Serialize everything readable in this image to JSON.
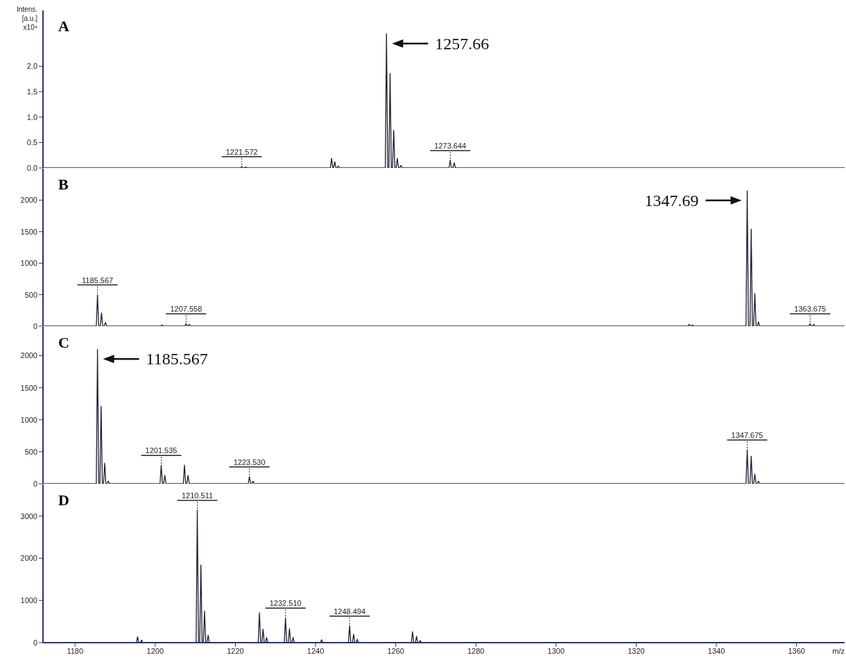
{
  "chart_data": [
    {
      "type": "line",
      "title": "A",
      "ylabel": "Intens. [a.u.] x10⁴",
      "color": "#1c1c2e",
      "xlim": [
        1172,
        1372
      ],
      "xticks": [
        1180,
        1200,
        1220,
        1240,
        1260,
        1280,
        1300,
        1320,
        1340,
        1360
      ],
      "ylim": [
        0,
        3.1
      ],
      "yticks": [
        {
          "value": 0,
          "label": "0.0"
        },
        0.5,
        {
          "value": 1,
          "label": "1.0"
        },
        1.5,
        {
          "value": 2,
          "label": "2.0"
        }
      ],
      "tick_labels": "y",
      "x": [
        1172,
        1221.3,
        1221.6,
        1221.9,
        1222.3,
        1222.6,
        1222.9,
        1243.7,
        1244.0,
        1244.3,
        1244.5,
        1244.8,
        1245.1,
        1245.4,
        1245.7,
        1246.0,
        1257.4,
        1257.7,
        1258.0,
        1258.3,
        1258.6,
        1258.9,
        1259.2,
        1259.5,
        1259.8,
        1260.1,
        1260.4,
        1260.7,
        1261.0,
        1261.3,
        1261.6,
        1273.3,
        1273.6,
        1273.9,
        1274.3,
        1274.6,
        1274.9,
        1372
      ],
      "values": [
        0,
        0,
        0.03,
        0,
        0,
        0.02,
        0,
        0,
        0.19,
        0,
        0,
        0.12,
        0,
        0,
        0.04,
        0,
        0,
        2.64,
        0,
        0,
        1.86,
        0,
        0,
        0.74,
        0,
        0,
        0.19,
        0,
        0,
        0.05,
        0,
        0,
        0.15,
        0,
        0,
        0.1,
        0,
        0
      ],
      "annotations": [
        "1257.66",
        {
          "text": "1221.572",
          "x": 1221.6,
          "y": 0.03
        },
        {
          "text": "1273.644",
          "x": 1273.6,
          "y": 0.15
        }
      ]
    },
    {
      "type": "line",
      "title": "B",
      "color": "#1c1c2e",
      "xlim": [
        1172,
        1372
      ],
      "xticks": [
        1180,
        1200,
        1220,
        1240,
        1260,
        1280,
        1300,
        1320,
        1340,
        1360
      ],
      "ylim": [
        0,
        2500
      ],
      "yticks": [
        0,
        500,
        1000,
        1500,
        2000
      ],
      "tick_labels": "y",
      "x": [
        1172,
        1185.3,
        1185.6,
        1185.9,
        1186.3,
        1186.6,
        1186.9,
        1187.3,
        1187.6,
        1187.9,
        1201.4,
        1201.7,
        1202.0,
        1207.4,
        1207.7,
        1208.0,
        1208.2,
        1208.5,
        1208.8,
        1332.9,
        1333.2,
        1333.5,
        1333.7,
        1334.0,
        1334.3,
        1347.4,
        1347.7,
        1348.0,
        1348.4,
        1348.7,
        1349.0,
        1349.3,
        1349.6,
        1349.9,
        1350.2,
        1350.5,
        1350.8,
        1363.1,
        1363.4,
        1363.7,
        1364.0,
        1364.3,
        1364.6,
        1372
      ],
      "values": [
        0,
        0,
        500,
        0,
        0,
        210,
        0,
        0,
        60,
        0,
        0,
        20,
        0,
        0,
        40,
        0,
        0,
        30,
        0,
        0,
        30,
        0,
        0,
        20,
        0,
        0,
        2150,
        0,
        0,
        1540,
        0,
        0,
        520,
        0,
        0,
        70,
        0,
        0,
        40,
        0,
        0,
        30,
        0,
        0
      ],
      "annotations": [
        "1347.69",
        {
          "text": "1185.567",
          "x": 1185.6,
          "y": 500
        },
        {
          "text": "1207.558",
          "x": 1207.7,
          "y": 40
        },
        {
          "text": "1363.675",
          "x": 1363.4,
          "y": 40
        }
      ]
    },
    {
      "type": "line",
      "title": "C",
      "color": "#1c1c2e",
      "xlim": [
        1172,
        1372
      ],
      "xticks": [
        1180,
        1200,
        1220,
        1240,
        1260,
        1280,
        1300,
        1320,
        1340,
        1360
      ],
      "ylim": [
        0,
        2450
      ],
      "yticks": [
        0,
        500,
        1000,
        1500,
        2000
      ],
      "tick_labels": "y",
      "x": [
        1172,
        1185.3,
        1185.6,
        1185.9,
        1186.2,
        1186.5,
        1186.8,
        1187.1,
        1187.4,
        1187.7,
        1188.0,
        1188.3,
        1188.6,
        1201.2,
        1201.5,
        1201.8,
        1202.1,
        1202.4,
        1202.7,
        1207.0,
        1207.3,
        1207.6,
        1207.9,
        1208.2,
        1208.5,
        1223.2,
        1223.5,
        1223.8,
        1224.1,
        1224.4,
        1224.7,
        1347.4,
        1347.7,
        1348.0,
        1348.4,
        1348.7,
        1349.0,
        1349.3,
        1349.6,
        1349.9,
        1350.2,
        1350.5,
        1350.8,
        1372
      ],
      "values": [
        0,
        0,
        2100,
        0,
        0,
        1210,
        0,
        0,
        320,
        0,
        0,
        40,
        0,
        0,
        290,
        0,
        0,
        130,
        0,
        0,
        290,
        0,
        0,
        130,
        0,
        0,
        110,
        0,
        0,
        40,
        0,
        0,
        530,
        0,
        0,
        430,
        0,
        0,
        150,
        0,
        0,
        40,
        0,
        0
      ],
      "annotations": [
        "1185.567",
        {
          "text": "1201.535",
          "x": 1201.5,
          "y": 290
        },
        {
          "text": "1223.530",
          "x": 1223.5,
          "y": 110
        },
        {
          "text": "1347.675",
          "x": 1347.7,
          "y": 530
        }
      ]
    },
    {
      "type": "line",
      "title": "D",
      "xlabel": "m/z",
      "color": "#1c1c2e",
      "xlim": [
        1172,
        1372
      ],
      "xticks": [
        1180,
        1200,
        1220,
        1240,
        1260,
        1280,
        1300,
        1320,
        1340,
        1360
      ],
      "ylim": [
        0,
        3750
      ],
      "yticks": [
        0,
        1000,
        2000,
        3000
      ],
      "x": [
        1172,
        1195.3,
        1195.6,
        1195.9,
        1196.3,
        1196.6,
        1196.9,
        1210.2,
        1210.5,
        1210.8,
        1211.1,
        1211.4,
        1211.7,
        1212.0,
        1212.3,
        1212.6,
        1212.9,
        1213.2,
        1213.5,
        1225.7,
        1226.0,
        1226.3,
        1226.6,
        1226.9,
        1227.2,
        1227.5,
        1227.8,
        1228.1,
        1232.2,
        1232.5,
        1232.8,
        1233.2,
        1233.5,
        1233.8,
        1234.1,
        1234.4,
        1234.7,
        1241.2,
        1241.5,
        1241.8,
        1248.2,
        1248.5,
        1248.8,
        1249.2,
        1249.5,
        1249.8,
        1250.1,
        1250.4,
        1250.7,
        1263.9,
        1264.2,
        1264.5,
        1264.9,
        1265.2,
        1265.5,
        1265.8,
        1266.1,
        1266.4,
        1372
      ],
      "values": [
        0,
        0,
        140,
        0,
        0,
        60,
        0,
        0,
        3140,
        0,
        0,
        1840,
        0,
        0,
        750,
        0,
        0,
        180,
        0,
        0,
        710,
        0,
        0,
        320,
        0,
        0,
        120,
        0,
        0,
        590,
        0,
        0,
        330,
        0,
        0,
        120,
        0,
        0,
        70,
        0,
        0,
        400,
        0,
        0,
        200,
        0,
        0,
        80,
        0,
        0,
        260,
        0,
        0,
        150,
        0,
        0,
        50,
        0,
        0
      ],
      "annotations": [
        {
          "text": "1210.511",
          "x": 1210.5,
          "y": 3140
        },
        {
          "text": "1232.510",
          "x": 1232.5,
          "y": 590
        },
        {
          "text": "1248.494",
          "x": 1248.5,
          "y": 400
        }
      ]
    }
  ]
}
